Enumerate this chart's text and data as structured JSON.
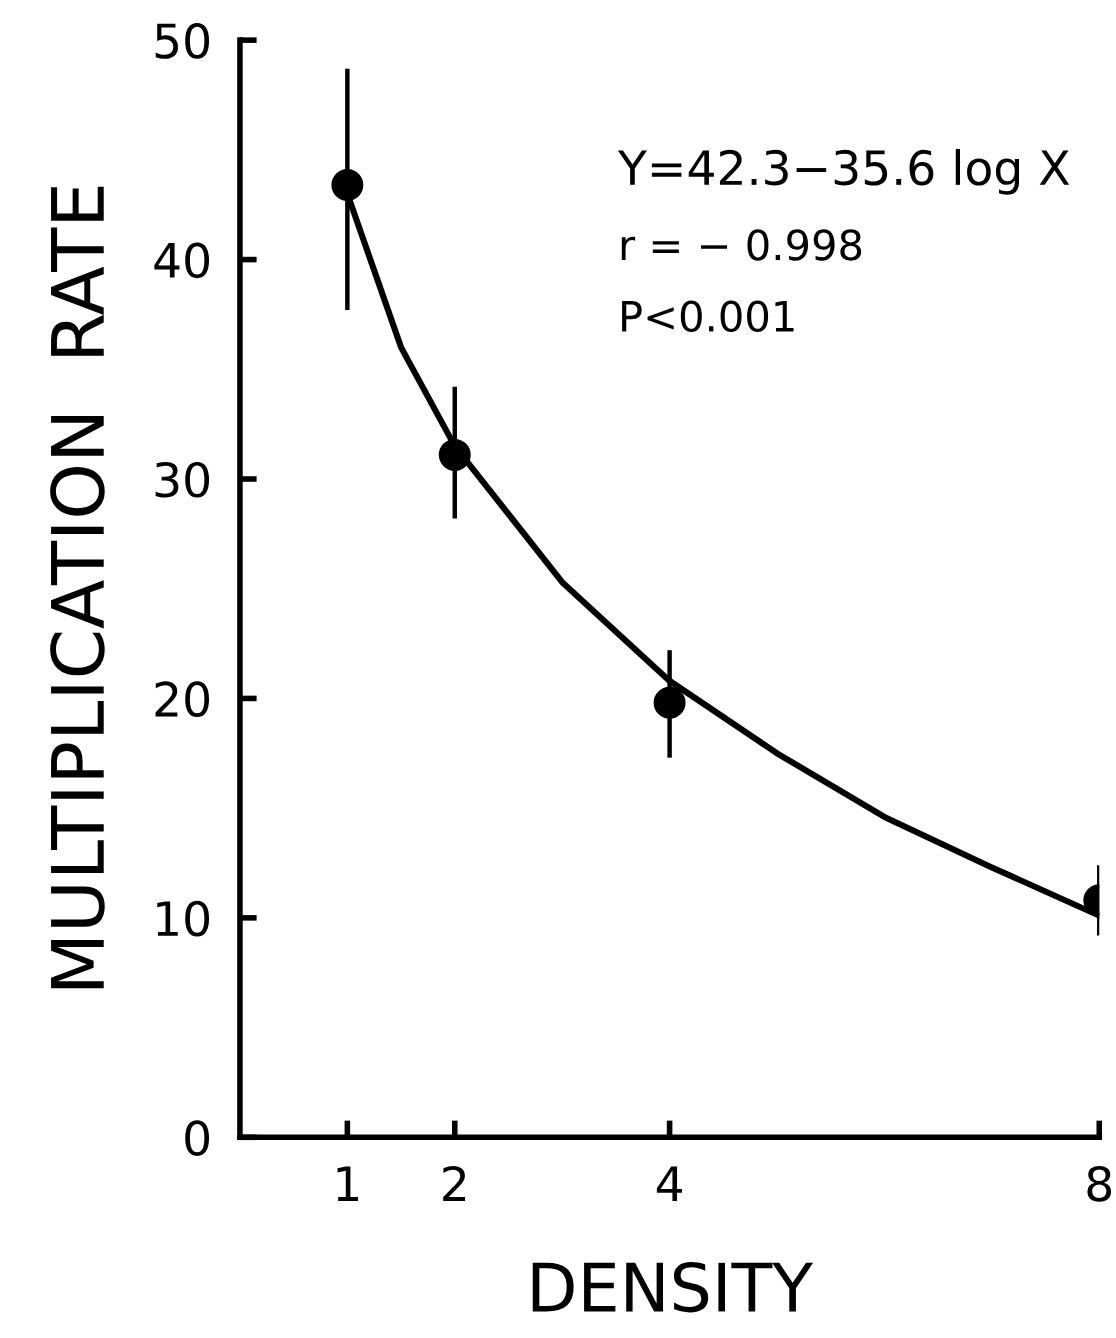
{
  "chart_data": {
    "type": "scatter",
    "xlabel": "DENSITY",
    "ylabel": "MULTIPLICATION  RATE",
    "xlim": [
      0,
      8
    ],
    "ylim": [
      0,
      50
    ],
    "xticks": [
      1,
      2,
      4,
      8
    ],
    "yticks": [
      0,
      10,
      20,
      30,
      40,
      50
    ],
    "grid": false,
    "legend": false,
    "annotations": [
      "Y=42.3−35.6 log X",
      "r = − 0.998",
      "P<0.001"
    ],
    "series": [
      {
        "color": "#000000",
        "marker": "circle",
        "x": [
          1,
          2,
          4,
          8
        ],
        "values": [
          43.4,
          31.1,
          19.8,
          10.8
        ],
        "errors": [
          [
            37.7,
            48.7
          ],
          [
            28.2,
            34.2
          ],
          [
            17.3,
            22.2
          ],
          [
            9.2,
            12.4
          ]
        ]
      },
      {
        "type": "line",
        "color": "#000000",
        "marker": "none",
        "line_style": "solid",
        "x": [
          1,
          1.5,
          2,
          3,
          4,
          5,
          6,
          7,
          8
        ],
        "values": [
          43,
          36,
          31.5,
          25.3,
          20.8,
          17.5,
          14.6,
          12.3,
          10.1
        ]
      }
    ]
  }
}
